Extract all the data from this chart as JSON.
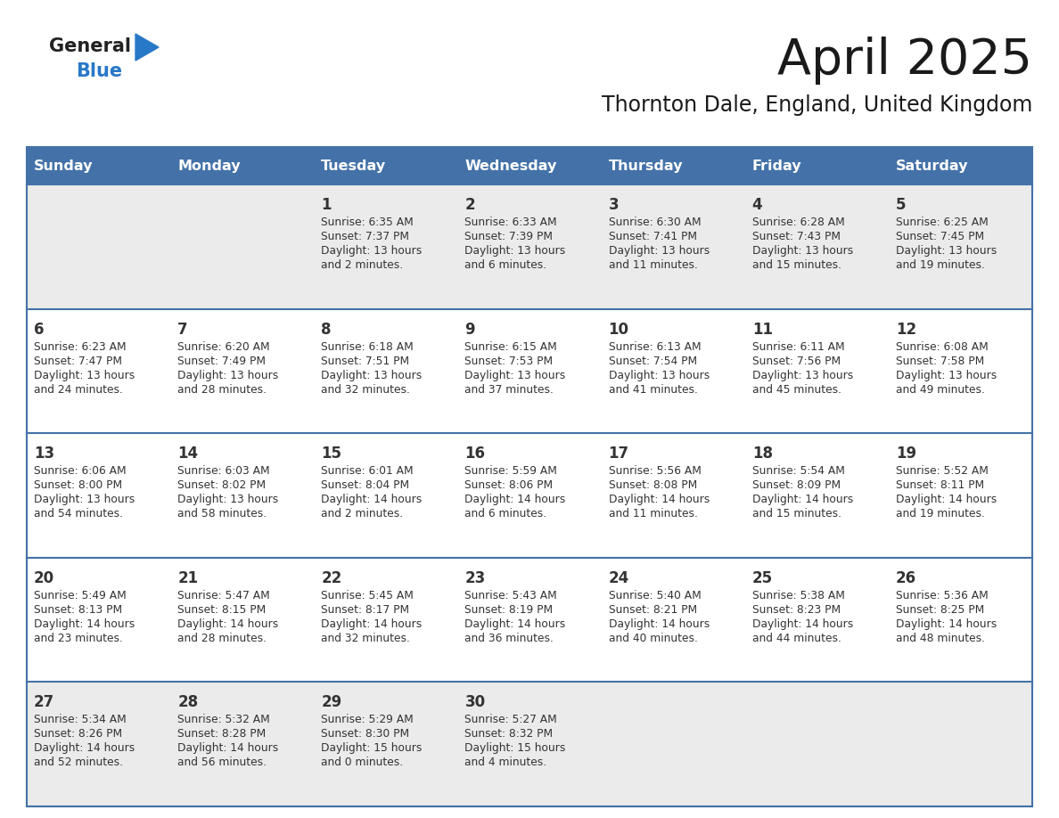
{
  "title": "April 2025",
  "subtitle": "Thornton Dale, England, United Kingdom",
  "header_bg_color": "#4472a8",
  "header_text_color": "#ffffff",
  "cell_bg_white": "#ffffff",
  "cell_bg_gray": "#ebebeb",
  "divider_color": "#4472a8",
  "text_color": "#333333",
  "day_num_color": "#333333",
  "day_headers": [
    "Sunday",
    "Monday",
    "Tuesday",
    "Wednesday",
    "Thursday",
    "Friday",
    "Saturday"
  ],
  "weeks": [
    [
      {
        "day": "",
        "info": ""
      },
      {
        "day": "",
        "info": ""
      },
      {
        "day": "1",
        "info": "Sunrise: 6:35 AM\nSunset: 7:37 PM\nDaylight: 13 hours\nand 2 minutes."
      },
      {
        "day": "2",
        "info": "Sunrise: 6:33 AM\nSunset: 7:39 PM\nDaylight: 13 hours\nand 6 minutes."
      },
      {
        "day": "3",
        "info": "Sunrise: 6:30 AM\nSunset: 7:41 PM\nDaylight: 13 hours\nand 11 minutes."
      },
      {
        "day": "4",
        "info": "Sunrise: 6:28 AM\nSunset: 7:43 PM\nDaylight: 13 hours\nand 15 minutes."
      },
      {
        "day": "5",
        "info": "Sunrise: 6:25 AM\nSunset: 7:45 PM\nDaylight: 13 hours\nand 19 minutes."
      }
    ],
    [
      {
        "day": "6",
        "info": "Sunrise: 6:23 AM\nSunset: 7:47 PM\nDaylight: 13 hours\nand 24 minutes."
      },
      {
        "day": "7",
        "info": "Sunrise: 6:20 AM\nSunset: 7:49 PM\nDaylight: 13 hours\nand 28 minutes."
      },
      {
        "day": "8",
        "info": "Sunrise: 6:18 AM\nSunset: 7:51 PM\nDaylight: 13 hours\nand 32 minutes."
      },
      {
        "day": "9",
        "info": "Sunrise: 6:15 AM\nSunset: 7:53 PM\nDaylight: 13 hours\nand 37 minutes."
      },
      {
        "day": "10",
        "info": "Sunrise: 6:13 AM\nSunset: 7:54 PM\nDaylight: 13 hours\nand 41 minutes."
      },
      {
        "day": "11",
        "info": "Sunrise: 6:11 AM\nSunset: 7:56 PM\nDaylight: 13 hours\nand 45 minutes."
      },
      {
        "day": "12",
        "info": "Sunrise: 6:08 AM\nSunset: 7:58 PM\nDaylight: 13 hours\nand 49 minutes."
      }
    ],
    [
      {
        "day": "13",
        "info": "Sunrise: 6:06 AM\nSunset: 8:00 PM\nDaylight: 13 hours\nand 54 minutes."
      },
      {
        "day": "14",
        "info": "Sunrise: 6:03 AM\nSunset: 8:02 PM\nDaylight: 13 hours\nand 58 minutes."
      },
      {
        "day": "15",
        "info": "Sunrise: 6:01 AM\nSunset: 8:04 PM\nDaylight: 14 hours\nand 2 minutes."
      },
      {
        "day": "16",
        "info": "Sunrise: 5:59 AM\nSunset: 8:06 PM\nDaylight: 14 hours\nand 6 minutes."
      },
      {
        "day": "17",
        "info": "Sunrise: 5:56 AM\nSunset: 8:08 PM\nDaylight: 14 hours\nand 11 minutes."
      },
      {
        "day": "18",
        "info": "Sunrise: 5:54 AM\nSunset: 8:09 PM\nDaylight: 14 hours\nand 15 minutes."
      },
      {
        "day": "19",
        "info": "Sunrise: 5:52 AM\nSunset: 8:11 PM\nDaylight: 14 hours\nand 19 minutes."
      }
    ],
    [
      {
        "day": "20",
        "info": "Sunrise: 5:49 AM\nSunset: 8:13 PM\nDaylight: 14 hours\nand 23 minutes."
      },
      {
        "day": "21",
        "info": "Sunrise: 5:47 AM\nSunset: 8:15 PM\nDaylight: 14 hours\nand 28 minutes."
      },
      {
        "day": "22",
        "info": "Sunrise: 5:45 AM\nSunset: 8:17 PM\nDaylight: 14 hours\nand 32 minutes."
      },
      {
        "day": "23",
        "info": "Sunrise: 5:43 AM\nSunset: 8:19 PM\nDaylight: 14 hours\nand 36 minutes."
      },
      {
        "day": "24",
        "info": "Sunrise: 5:40 AM\nSunset: 8:21 PM\nDaylight: 14 hours\nand 40 minutes."
      },
      {
        "day": "25",
        "info": "Sunrise: 5:38 AM\nSunset: 8:23 PM\nDaylight: 14 hours\nand 44 minutes."
      },
      {
        "day": "26",
        "info": "Sunrise: 5:36 AM\nSunset: 8:25 PM\nDaylight: 14 hours\nand 48 minutes."
      }
    ],
    [
      {
        "day": "27",
        "info": "Sunrise: 5:34 AM\nSunset: 8:26 PM\nDaylight: 14 hours\nand 52 minutes."
      },
      {
        "day": "28",
        "info": "Sunrise: 5:32 AM\nSunset: 8:28 PM\nDaylight: 14 hours\nand 56 minutes."
      },
      {
        "day": "29",
        "info": "Sunrise: 5:29 AM\nSunset: 8:30 PM\nDaylight: 15 hours\nand 0 minutes."
      },
      {
        "day": "30",
        "info": "Sunrise: 5:27 AM\nSunset: 8:32 PM\nDaylight: 15 hours\nand 4 minutes."
      },
      {
        "day": "",
        "info": ""
      },
      {
        "day": "",
        "info": ""
      },
      {
        "day": "",
        "info": ""
      }
    ]
  ],
  "logo_general_color": "#222222",
  "logo_blue_color": "#2878c8",
  "logo_triangle_color": "#2878c8",
  "title_color": "#1a1a1a",
  "subtitle_color": "#1a1a1a"
}
